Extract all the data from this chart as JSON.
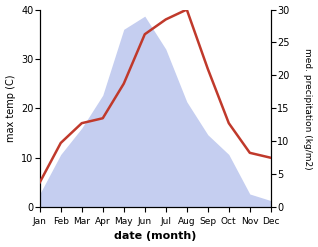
{
  "months": [
    "Jan",
    "Feb",
    "Mar",
    "Apr",
    "May",
    "Jun",
    "Jul",
    "Aug",
    "Sep",
    "Oct",
    "Nov",
    "Dec"
  ],
  "temperature": [
    5,
    13,
    17,
    18,
    25,
    35,
    38,
    40,
    28,
    17,
    11,
    10
  ],
  "precipitation": [
    2,
    8,
    12,
    17,
    27,
    29,
    24,
    16,
    11,
    8,
    2,
    1
  ],
  "temp_ylim": [
    0,
    40
  ],
  "precip_ylim": [
    0,
    30
  ],
  "temp_color": "#c0392b",
  "precip_fill_color": "#c5cef0",
  "xlabel": "date (month)",
  "ylabel_left": "max temp (C)",
  "ylabel_right": "med. precipitation (kg/m2)",
  "temp_yticks": [
    0,
    10,
    20,
    30,
    40
  ],
  "precip_yticks": [
    0,
    5,
    10,
    15,
    20,
    25,
    30
  ],
  "background_color": "#ffffff"
}
